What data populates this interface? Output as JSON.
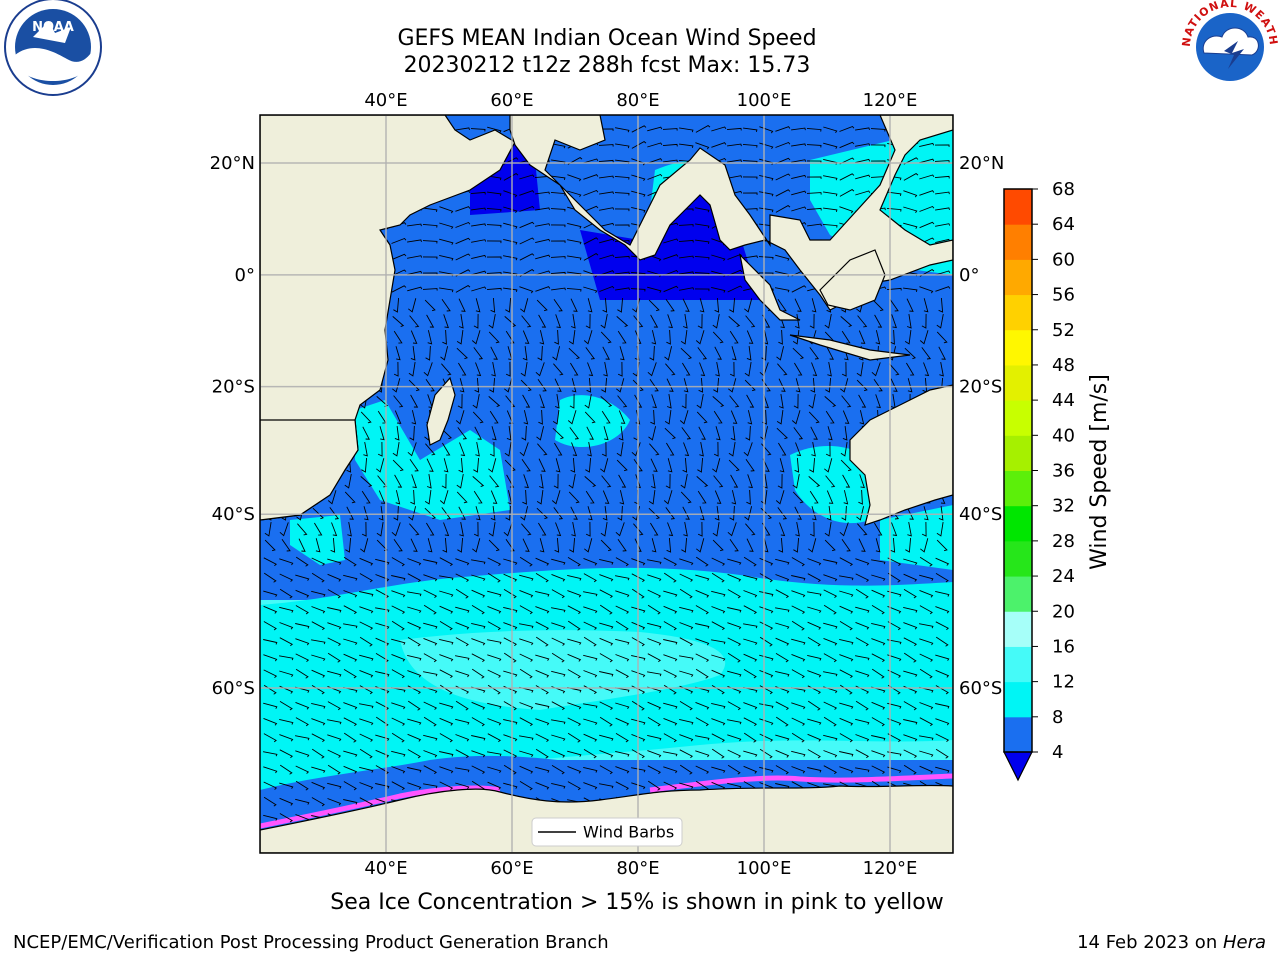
{
  "title_line1": "GEFS MEAN Indian Ocean Wind Speed",
  "title_line2": "20230212 t12z 288h fcst   Max: 15.73",
  "caption": "Sea Ice Concentration > 15% is shown in pink to yellow",
  "footer_left": "NCEP/EMC/Verification Post Processing Product Generation Branch",
  "footer_right_prefix": "14 Feb 2023 on ",
  "footer_right_host": "Hera",
  "logos": {
    "noaa_text": "NOAA",
    "nws_text": "NATIONAL WEATHER SERVICE"
  },
  "map": {
    "lon_range": [
      20,
      130
    ],
    "lat_range": [
      -72,
      28
    ],
    "lon_ticks": [
      40,
      60,
      80,
      100,
      120
    ],
    "lon_tick_labels": [
      "40°E",
      "60°E",
      "80°E",
      "100°E",
      "120°E"
    ],
    "lat_ticks": [
      20,
      0,
      -20,
      -40,
      -60
    ],
    "lat_tick_labels": [
      "20°N",
      "0°",
      "20°S",
      "40°S",
      "60°S"
    ],
    "grid": true,
    "legend_label": "Wind Barbs",
    "legend_position": "bottom-center"
  },
  "colorbar": {
    "label": "Wind Speed [m/s]",
    "ticks": [
      4,
      8,
      12,
      16,
      20,
      24,
      28,
      32,
      36,
      40,
      44,
      48,
      52,
      56,
      60,
      64,
      68
    ],
    "colors": [
      "#1a6ff0",
      "#00f5f5",
      "#45faf8",
      "#a6fff9",
      "#4cf26b",
      "#26e61a",
      "#00e600",
      "#5cef0a",
      "#a6f000",
      "#c8ff00",
      "#e3f000",
      "#fff700",
      "#ffd100",
      "#ffa900",
      "#ff7f00",
      "#ff4a00",
      "#ff0000"
    ],
    "under_color": "#0000ee"
  },
  "colors": {
    "land": "#efefdb",
    "ocean_low": "#1a6ff0",
    "ocean_calm": "#0000ee",
    "ocean_mid": "#00f5f5",
    "ocean_high": "#45faf8",
    "sea_ice": "#ff55ff"
  }
}
